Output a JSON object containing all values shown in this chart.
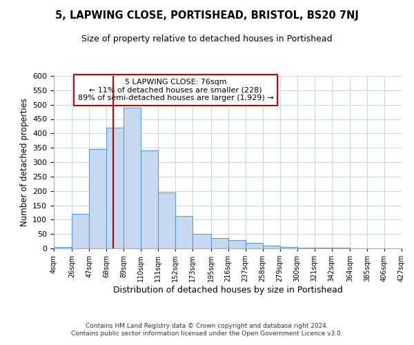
{
  "title": "5, LAPWING CLOSE, PORTISHEAD, BRISTOL, BS20 7NJ",
  "subtitle": "Size of property relative to detached houses in Portishead",
  "xlabel": "Distribution of detached houses by size in Portishead",
  "ylabel": "Number of detached properties",
  "bar_color": "#c6d9f0",
  "bar_edge_color": "#5b9bd5",
  "grid_color": "#c8d8e8",
  "marker_line_color": "#cc0000",
  "marker_value": 76,
  "annotation_title": "5 LAPWING CLOSE: 76sqm",
  "annotation_line1": "← 11% of detached houses are smaller (228)",
  "annotation_line2": "89% of semi-detached houses are larger (1,929) →",
  "bin_edges": [
    4,
    26,
    47,
    68,
    89,
    110,
    131,
    152,
    173,
    195,
    216,
    237,
    258,
    279,
    300,
    321,
    342,
    364,
    385,
    406,
    427
  ],
  "bar_heights": [
    5,
    120,
    345,
    420,
    490,
    340,
    195,
    112,
    50,
    35,
    30,
    20,
    10,
    5,
    3,
    2,
    2,
    1,
    1,
    1
  ],
  "ylim": [
    0,
    600
  ],
  "yticks": [
    0,
    50,
    100,
    150,
    200,
    250,
    300,
    350,
    400,
    450,
    500,
    550,
    600
  ],
  "footer_line1": "Contains HM Land Registry data © Crown copyright and database right 2024.",
  "footer_line2": "Contains public sector information licensed under the Open Government Licence v3.0."
}
